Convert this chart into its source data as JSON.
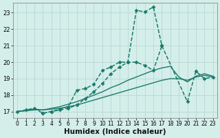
{
  "xlabel": "Humidex (Indice chaleur)",
  "ylabel": "",
  "xlim": [
    -0.5,
    23.5
  ],
  "ylim": [
    16.6,
    23.6
  ],
  "bg_color": "#d4eeea",
  "grid_color": "#b8d8d4",
  "line_color": "#1a7a6a",
  "lines": [
    {
      "x": [
        0,
        1,
        2,
        3,
        4,
        5,
        6,
        7,
        8,
        9,
        10,
        11,
        12,
        13,
        14,
        15,
        16,
        17
      ],
      "y": [
        17.0,
        17.1,
        17.2,
        16.9,
        17.0,
        17.1,
        17.2,
        17.4,
        17.8,
        18.2,
        18.7,
        19.3,
        19.7,
        20.0,
        20.0,
        19.8,
        19.5,
        21.0
      ],
      "marker": "D",
      "markersize": 2.5,
      "linewidth": 1.1,
      "linestyle": "--"
    },
    {
      "x": [
        0,
        1,
        2,
        3,
        4,
        5,
        6,
        7,
        8,
        9,
        10,
        11,
        12,
        13,
        14,
        15,
        16,
        17,
        18,
        19,
        20,
        21,
        22,
        23
      ],
      "y": [
        17.0,
        17.05,
        17.1,
        17.1,
        17.15,
        17.2,
        17.3,
        17.4,
        17.55,
        17.7,
        17.85,
        18.0,
        18.15,
        18.3,
        18.45,
        18.6,
        18.75,
        18.9,
        19.0,
        19.0,
        18.9,
        19.1,
        19.2,
        19.1
      ],
      "marker": null,
      "markersize": 0,
      "linewidth": 1.0,
      "linestyle": "-"
    },
    {
      "x": [
        0,
        1,
        2,
        3,
        4,
        5,
        6,
        7,
        8,
        9,
        10,
        11,
        12,
        13,
        14,
        15,
        16,
        17,
        18,
        19,
        20,
        21,
        22,
        23
      ],
      "y": [
        17.0,
        17.07,
        17.15,
        17.1,
        17.2,
        17.3,
        17.45,
        17.6,
        17.8,
        18.0,
        18.2,
        18.45,
        18.65,
        18.9,
        19.1,
        19.3,
        19.5,
        19.65,
        19.75,
        19.1,
        18.8,
        19.15,
        19.3,
        19.15
      ],
      "marker": null,
      "markersize": 0,
      "linewidth": 1.0,
      "linestyle": "-"
    },
    {
      "x": [
        3,
        4,
        5,
        6,
        7,
        8,
        9,
        10,
        11,
        12,
        13,
        14,
        15,
        16,
        17,
        20,
        21,
        22,
        23
      ],
      "y": [
        16.9,
        17.0,
        17.15,
        17.3,
        18.3,
        18.4,
        18.65,
        19.5,
        19.7,
        20.0,
        20.0,
        23.15,
        23.05,
        23.35,
        21.0,
        17.6,
        19.45,
        19.0,
        19.1
      ],
      "marker": "D",
      "markersize": 2.5,
      "linewidth": 1.1,
      "linestyle": "--"
    }
  ],
  "xticks": [
    0,
    1,
    2,
    3,
    4,
    5,
    6,
    7,
    8,
    9,
    10,
    11,
    12,
    13,
    14,
    15,
    16,
    17,
    18,
    19,
    20,
    21,
    22,
    23
  ],
  "yticks": [
    17,
    18,
    19,
    20,
    21,
    22,
    23
  ],
  "tick_fontsize": 6.0,
  "xlabel_fontsize": 7.5
}
